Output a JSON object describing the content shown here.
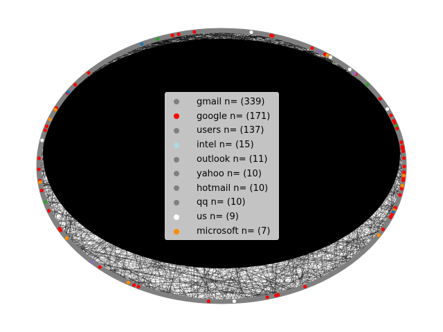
{
  "diagram": {
    "type": "circular-network-graph",
    "node_ring_color": "#808080",
    "edge_color": "#000000",
    "node_colors_seen": [
      "#808080",
      "#ff0000",
      "#add8e6",
      "#ffffff",
      "#ff8c00",
      "#2ca02c",
      "#1f77b4",
      "#9467bd"
    ]
  },
  "legend": {
    "items": [
      {
        "label": "gmail n= (339)",
        "color": "#808080"
      },
      {
        "label": "google n= (171)",
        "color": "#ff0000"
      },
      {
        "label": "users n= (137)",
        "color": "#808080"
      },
      {
        "label": "intel n= (15)",
        "color": "#add8e6"
      },
      {
        "label": "outlook n= (11)",
        "color": "#808080"
      },
      {
        "label": "yahoo n= (10)",
        "color": "#808080"
      },
      {
        "label": "hotmail n= (10)",
        "color": "#808080"
      },
      {
        "label": "qq n= (10)",
        "color": "#808080"
      },
      {
        "label": "us n= (9)",
        "color": "#ffffff"
      },
      {
        "label": "microsoft n= (7)",
        "color": "#ff8c00"
      }
    ]
  }
}
